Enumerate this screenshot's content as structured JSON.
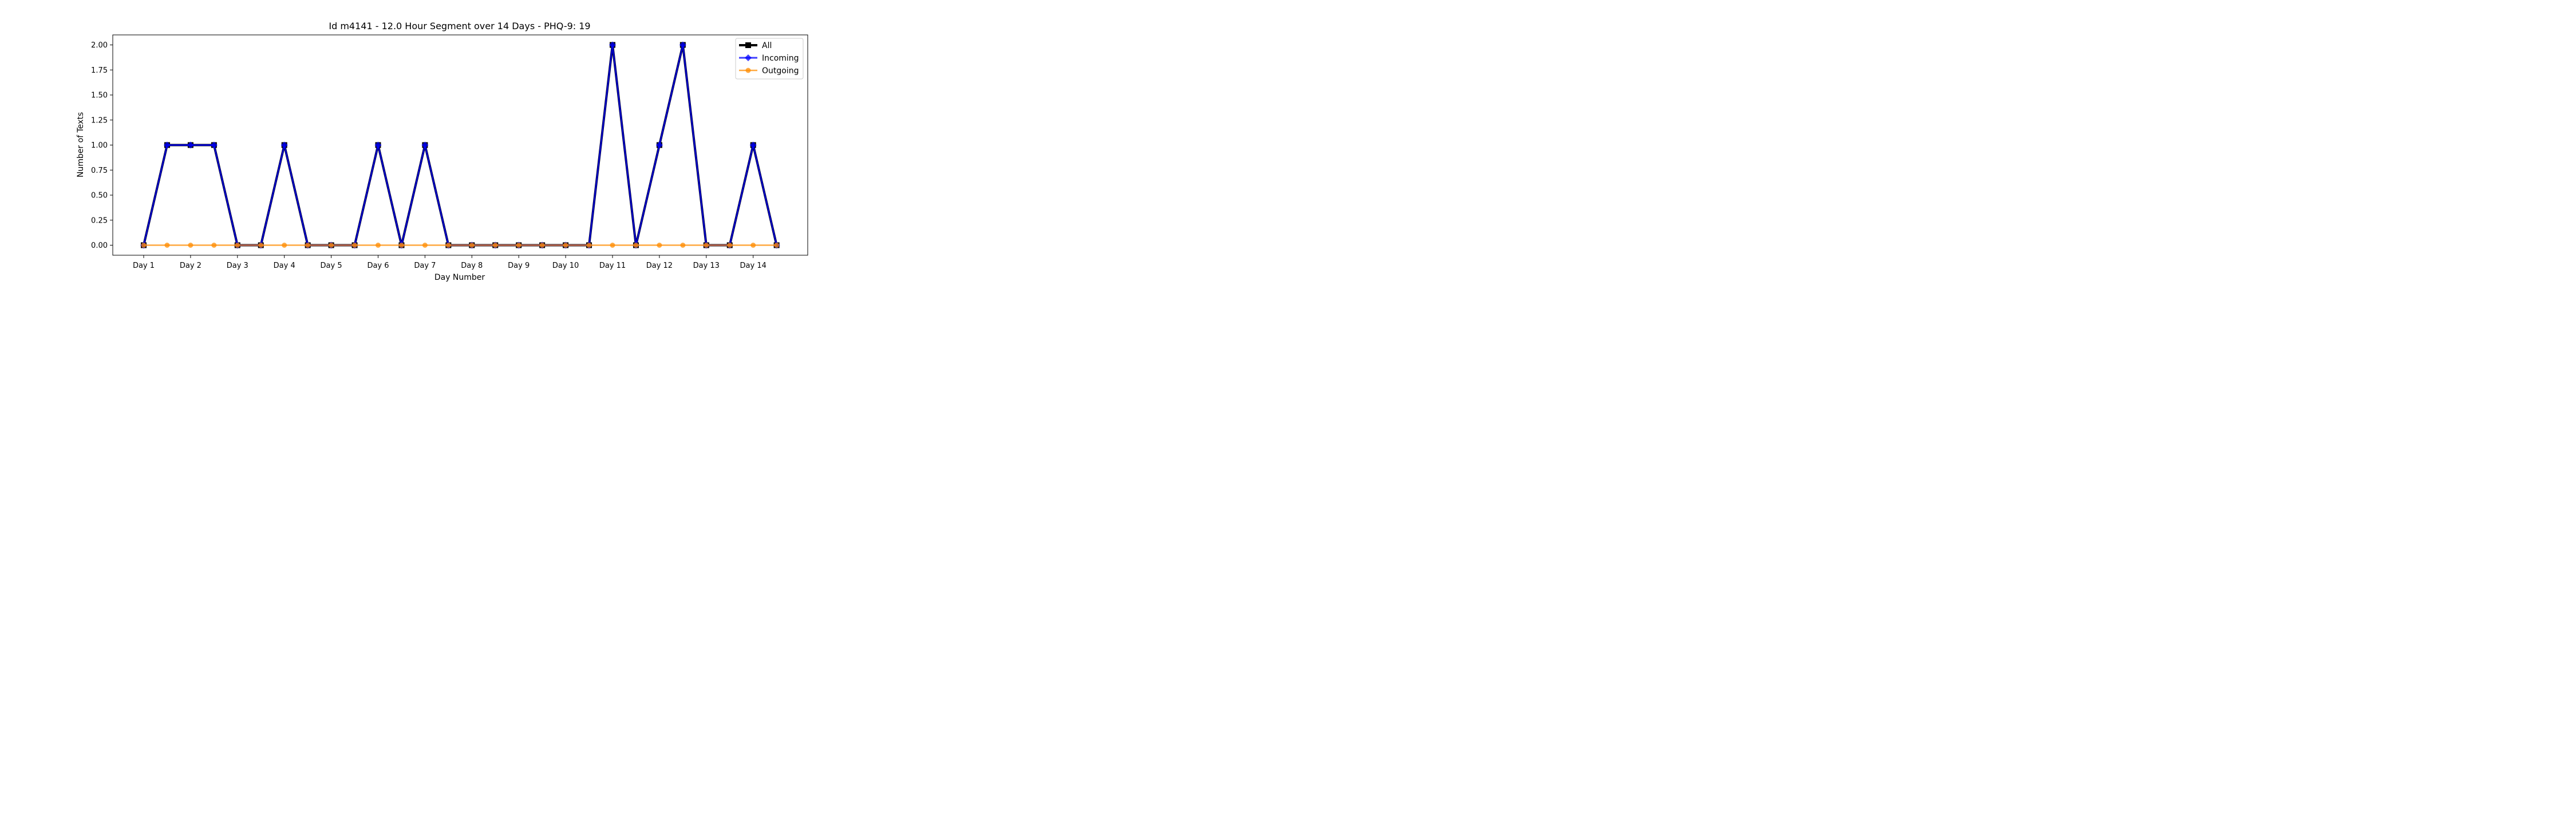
{
  "chart_data": {
    "type": "line",
    "title": "Id m4141 - 12.0 Hour Segment over 14 Days - PHQ-9: 19",
    "xlabel": "Day Number",
    "ylabel": "Number of Texts",
    "x_tick_labels": [
      "Day 1",
      "Day 2",
      "Day 3",
      "Day 4",
      "Day 5",
      "Day 6",
      "Day 7",
      "Day 8",
      "Day 9",
      "Day 10",
      "Day 11",
      "Day 12",
      "Day 13",
      "Day 14"
    ],
    "y_tick_labels": [
      "0.00",
      "0.25",
      "0.50",
      "0.75",
      "1.00",
      "1.25",
      "1.50",
      "1.75",
      "2.00"
    ],
    "ylim": [
      -0.1,
      2.1
    ],
    "grid": false,
    "legend_position": "top-right",
    "series": [
      {
        "name": "All",
        "color": "#000000",
        "marker": "square",
        "values": [
          0,
          1,
          1,
          1,
          0,
          0,
          1,
          0,
          0,
          0,
          1,
          0,
          1,
          0,
          0,
          0,
          0,
          0,
          0,
          0,
          2,
          0,
          1,
          2,
          0,
          0,
          1,
          0
        ]
      },
      {
        "name": "Incoming",
        "color": "#0000ff",
        "marker": "diamond",
        "values": [
          0,
          1,
          1,
          1,
          0,
          0,
          1,
          0,
          0,
          0,
          1,
          0,
          1,
          0,
          0,
          0,
          0,
          0,
          0,
          0,
          2,
          0,
          1,
          2,
          0,
          0,
          1,
          0
        ]
      },
      {
        "name": "Outgoing",
        "color": "#ff8c00",
        "marker": "circle",
        "values": [
          0,
          0,
          0,
          0,
          0,
          0,
          0,
          0,
          0,
          0,
          0,
          0,
          0,
          0,
          0,
          0,
          0,
          0,
          0,
          0,
          0,
          0,
          0,
          0,
          0,
          0,
          0,
          0
        ]
      }
    ]
  }
}
